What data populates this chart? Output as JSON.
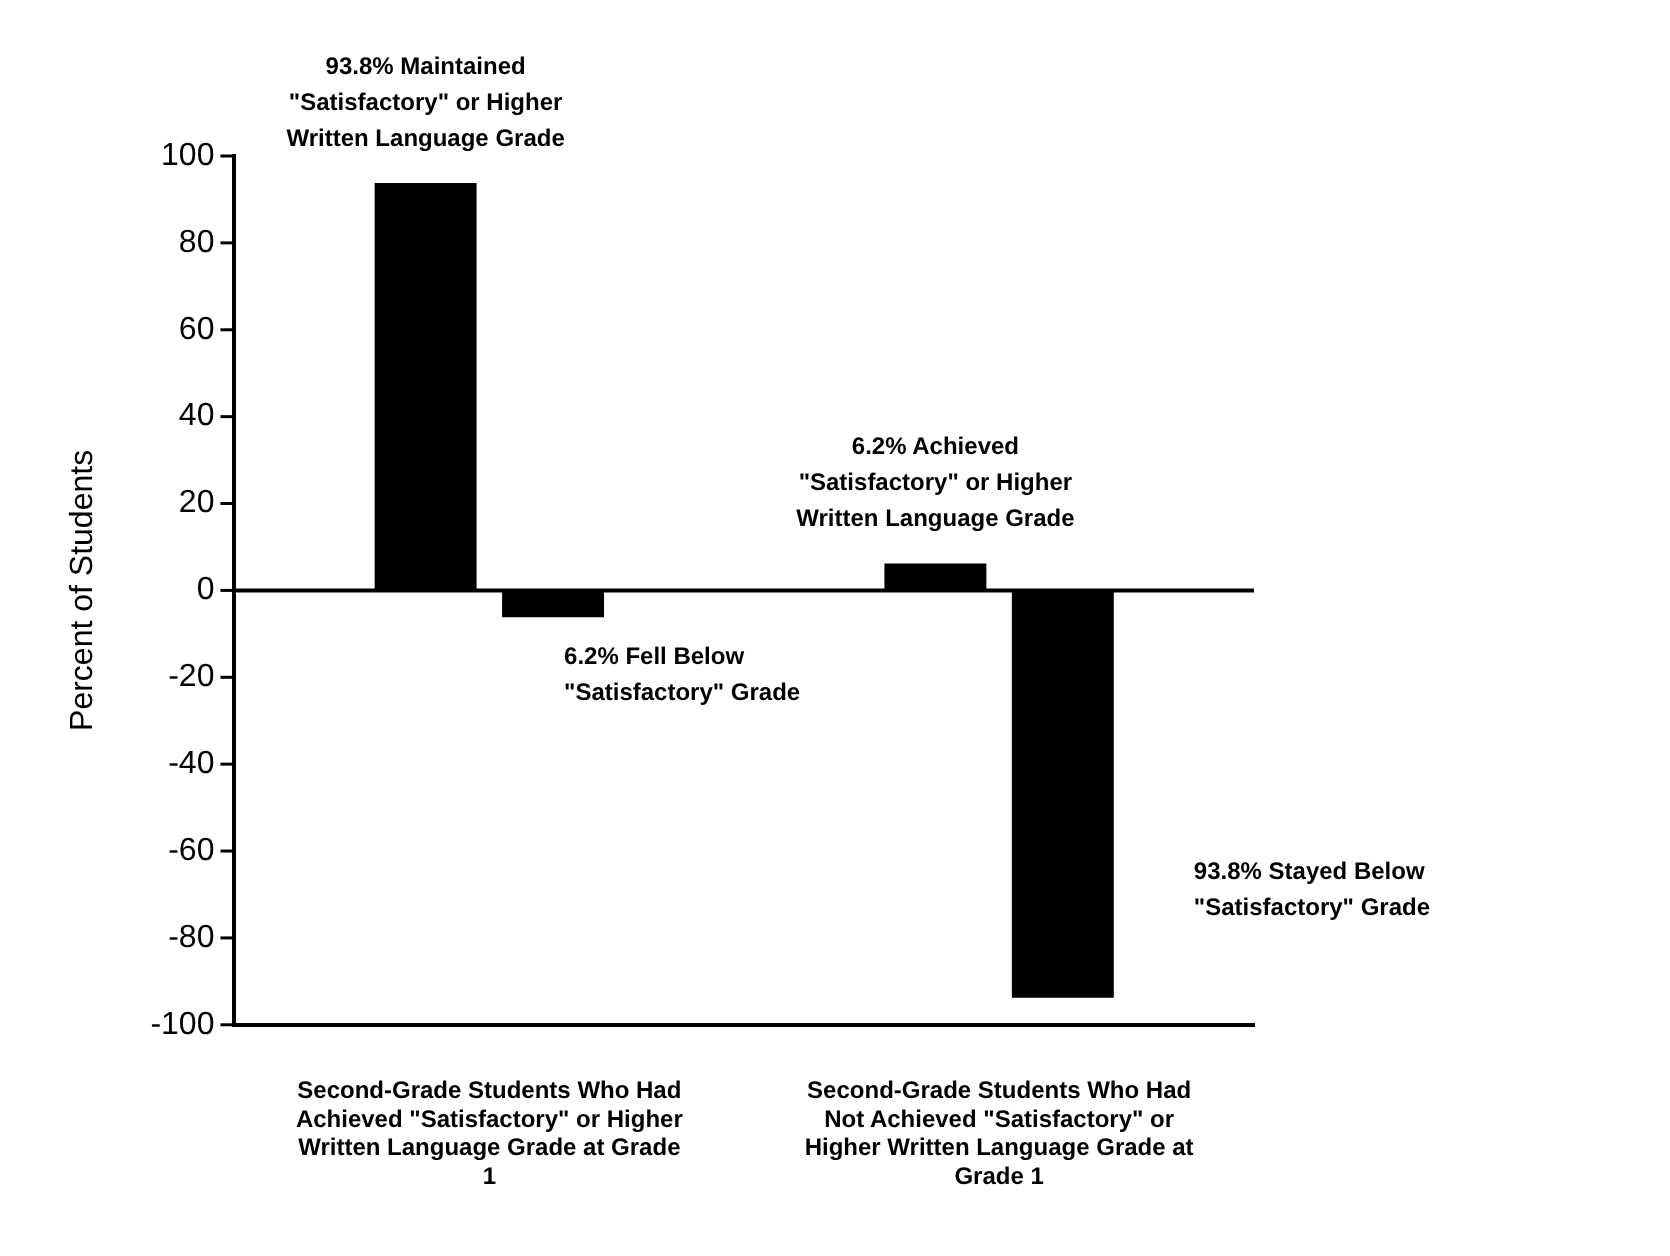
{
  "chart_data": {
    "type": "bar",
    "ylabel": "Percent of Students",
    "categories": [
      "Second-Grade Students Who Had Achieved \"Satisfactory\" or Higher Written Language Grade at Grade 1",
      "Second-Grade Students Who Had Not Achieved \"Satisfactory\" or Higher Written Language Grade at Grade 1"
    ],
    "series": [
      {
        "color": "#000000",
        "values": [
          93.8,
          6.2
        ]
      },
      {
        "color": "#000000",
        "values": [
          -6.2,
          -93.8
        ]
      }
    ],
    "ylim": [
      -100,
      100
    ],
    "yticks": [
      -100,
      -80,
      -60,
      -40,
      -20,
      0,
      20,
      40,
      60,
      80,
      100
    ],
    "legend": false,
    "annotations": [
      "93.8% Maintained \"Satisfactory\" or Higher Written Language Grade",
      "6.2% Fell Below \"Satisfactory\" Grade",
      "6.2% Achieved \"Satisfactory\" or Higher Written Language Grade",
      "93.8% Stayed Below \"Satisfactory\" Grade"
    ]
  }
}
